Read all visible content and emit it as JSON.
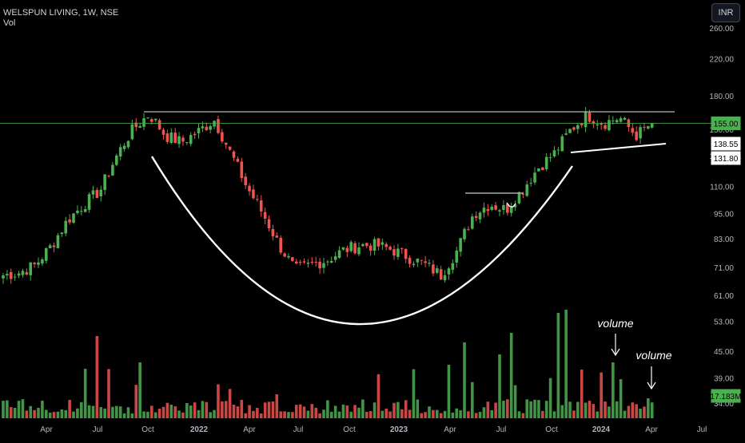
{
  "header": {
    "symbol_title": "WELSPUN LIVING, 1W, NSE",
    "volume_label": "Vol",
    "currency_button": "INR"
  },
  "price_labels": {
    "last": "155.00",
    "r1": "138.55",
    "r2": "131.80",
    "volume_last": "17.183M"
  },
  "annotations": [
    "volume",
    "volume"
  ],
  "colors": {
    "background": "#000000",
    "up": "#4caf50",
    "down": "#ef5350",
    "grid_text": "#b2b5be",
    "drawing": "#ffffff",
    "resistance_line": "#a8a8a8",
    "last_price_line": "#4caf50"
  },
  "chart_data": {
    "type": "candlestick",
    "timeframe": "1W",
    "y_scale": "log",
    "price_ticks": [
      "260.00",
      "220.00",
      "180.00",
      "150.00",
      "130.00",
      "110.00",
      "95.00",
      "83.00",
      "71.00",
      "61.00",
      "53.00",
      "45.00",
      "39.00",
      "34.00"
    ],
    "x_ticks": [
      "Apr",
      "Jul",
      "Oct",
      "2022",
      "Apr",
      "Jul",
      "Oct",
      "2023",
      "Apr",
      "Jul",
      "Oct",
      "2024",
      "Apr",
      "Jul"
    ],
    "close_path": [
      [
        "2021-01",
        68
      ],
      [
        "2021-02",
        69
      ],
      [
        "2021-03",
        72
      ],
      [
        "2021-04",
        80
      ],
      [
        "2021-05",
        92
      ],
      [
        "2021-06",
        100
      ],
      [
        "2021-07",
        108
      ],
      [
        "2021-08",
        130
      ],
      [
        "2021-09",
        150
      ],
      [
        "2021-10",
        163
      ],
      [
        "2021-10b",
        145
      ],
      [
        "2021-11",
        140
      ],
      [
        "2021-12",
        148
      ],
      [
        "2022-01",
        158
      ],
      [
        "2022-02",
        132
      ],
      [
        "2022-03",
        110
      ],
      [
        "2022-04",
        95
      ],
      [
        "2022-05",
        80
      ],
      [
        "2022-06",
        70
      ],
      [
        "2022-07",
        72
      ],
      [
        "2022-08",
        74
      ],
      [
        "2022-09",
        78
      ],
      [
        "2022-10",
        80
      ],
      [
        "2022-11",
        80
      ],
      [
        "2022-12",
        78
      ],
      [
        "2023-01",
        75
      ],
      [
        "2023-02",
        72
      ],
      [
        "2023-03",
        68
      ],
      [
        "2023-04",
        78
      ],
      [
        "2023-05",
        95
      ],
      [
        "2023-06",
        100
      ],
      [
        "2023-07",
        97
      ],
      [
        "2023-08",
        108
      ],
      [
        "2023-09",
        122
      ],
      [
        "2023-10",
        132
      ],
      [
        "2023-11",
        150
      ],
      [
        "2023-12",
        162
      ],
      [
        "2024-01",
        155
      ],
      [
        "2024-02",
        160
      ],
      [
        "2024-03",
        145
      ],
      [
        "2024-04",
        155
      ]
    ],
    "resistance_level": 165,
    "last_price": 155.0
  }
}
